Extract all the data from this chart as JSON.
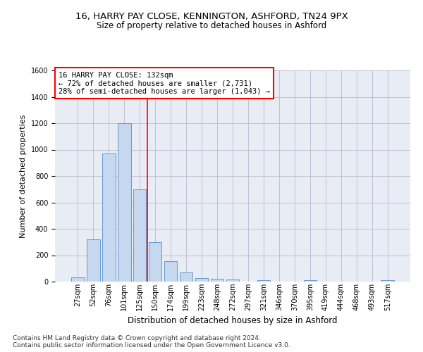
{
  "title1": "16, HARRY PAY CLOSE, KENNINGTON, ASHFORD, TN24 9PX",
  "title2": "Size of property relative to detached houses in Ashford",
  "xlabel": "Distribution of detached houses by size in Ashford",
  "ylabel": "Number of detached properties",
  "categories": [
    "27sqm",
    "52sqm",
    "76sqm",
    "101sqm",
    "125sqm",
    "150sqm",
    "174sqm",
    "199sqm",
    "223sqm",
    "248sqm",
    "272sqm",
    "297sqm",
    "321sqm",
    "346sqm",
    "370sqm",
    "395sqm",
    "419sqm",
    "444sqm",
    "468sqm",
    "493sqm",
    "517sqm"
  ],
  "values": [
    30,
    320,
    970,
    1200,
    700,
    300,
    155,
    70,
    28,
    20,
    15,
    0,
    10,
    0,
    0,
    10,
    0,
    0,
    0,
    0,
    10
  ],
  "bar_color": "#c5d8f0",
  "bar_edge_color": "#6699cc",
  "bar_edge_width": 0.7,
  "vline_x": 4.5,
  "vline_color": "red",
  "annotation_line1": "16 HARRY PAY CLOSE: 132sqm",
  "annotation_line2": "← 72% of detached houses are smaller (2,731)",
  "annotation_line3": "28% of semi-detached houses are larger (1,043) →",
  "annotation_box_color": "white",
  "annotation_box_edge_color": "red",
  "annotation_fontsize": 7.5,
  "ylim": [
    0,
    1600
  ],
  "yticks": [
    0,
    200,
    400,
    600,
    800,
    1000,
    1200,
    1400,
    1600
  ],
  "grid_color": "#bbbbcc",
  "bg_color": "#e8ecf5",
  "footer": "Contains HM Land Registry data © Crown copyright and database right 2024.\nContains public sector information licensed under the Open Government Licence v3.0.",
  "title1_fontsize": 9.5,
  "title2_fontsize": 8.5,
  "xlabel_fontsize": 8.5,
  "ylabel_fontsize": 8,
  "footer_fontsize": 6.5,
  "tick_fontsize": 7
}
